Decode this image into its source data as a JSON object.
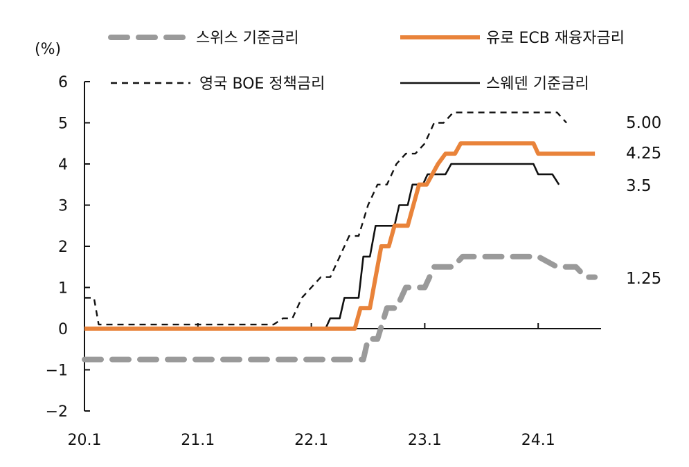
{
  "chart_data": {
    "type": "line",
    "ylabel": "(%)",
    "ylim": [
      -2,
      6
    ],
    "yticks": [
      "6",
      "5",
      "4",
      "3",
      "2",
      "1",
      "0",
      "−1",
      "−2"
    ],
    "xticks": [
      "20.1",
      "21.1",
      "22.1",
      "23.1",
      "24.1"
    ],
    "grid": false,
    "legend_position": "top",
    "series": [
      {
        "name": "스위스 기준금리",
        "color": "#9a9a9a",
        "style": "dashed-thick",
        "points": [
          [
            0,
            -0.75
          ],
          [
            29.5,
            -0.75
          ],
          [
            30,
            -0.25
          ],
          [
            31,
            -0.25
          ],
          [
            32,
            0.5
          ],
          [
            33,
            0.5
          ],
          [
            34,
            1.0
          ],
          [
            36,
            1.0
          ],
          [
            37,
            1.5
          ],
          [
            39,
            1.5
          ],
          [
            40,
            1.75
          ],
          [
            48,
            1.75
          ],
          [
            50,
            1.5
          ],
          [
            52,
            1.5
          ],
          [
            53,
            1.25
          ],
          [
            54,
            1.25
          ]
        ],
        "end_label": "1.25"
      },
      {
        "name": "유로 ECB 재융자금리",
        "color": "#e9833a",
        "style": "solid-thick",
        "points": [
          [
            0,
            0
          ],
          [
            28.6,
            0
          ],
          [
            29.2,
            0.5
          ],
          [
            30.2,
            0.5
          ],
          [
            30.8,
            1.25
          ],
          [
            31.4,
            2.0
          ],
          [
            32.2,
            2.0
          ],
          [
            32.8,
            2.5
          ],
          [
            34.2,
            2.5
          ],
          [
            34.8,
            3.0
          ],
          [
            35.4,
            3.5
          ],
          [
            36.2,
            3.5
          ],
          [
            36.8,
            3.75
          ],
          [
            37.4,
            4.0
          ],
          [
            38.2,
            4.25
          ],
          [
            39.2,
            4.25
          ],
          [
            39.8,
            4.5
          ],
          [
            47.5,
            4.5
          ],
          [
            48,
            4.25
          ],
          [
            54,
            4.25
          ]
        ],
        "end_label": "4.25"
      },
      {
        "name": "영국 BOE 정책금리",
        "color": "#111111",
        "style": "dashed-thin",
        "points": [
          [
            0,
            0.75
          ],
          [
            1,
            0.75
          ],
          [
            1.5,
            0.1
          ],
          [
            20,
            0.1
          ],
          [
            21,
            0.25
          ],
          [
            22,
            0.25
          ],
          [
            23,
            0.75
          ],
          [
            24,
            1.0
          ],
          [
            25,
            1.25
          ],
          [
            26,
            1.25
          ],
          [
            27,
            1.75
          ],
          [
            28,
            2.25
          ],
          [
            29,
            2.25
          ],
          [
            30,
            3.0
          ],
          [
            31,
            3.5
          ],
          [
            32,
            3.5
          ],
          [
            33,
            4.0
          ],
          [
            34,
            4.25
          ],
          [
            35,
            4.25
          ],
          [
            36,
            4.5
          ],
          [
            37,
            5.0
          ],
          [
            38,
            5.0
          ],
          [
            39,
            5.25
          ],
          [
            50,
            5.25
          ],
          [
            51,
            5.0
          ]
        ],
        "end_label": "5.00"
      },
      {
        "name": "스웨덴 기준금리",
        "color": "#111111",
        "style": "solid-thin",
        "points": [
          [
            0,
            0
          ],
          [
            25.5,
            0
          ],
          [
            26,
            0.25
          ],
          [
            27,
            0.25
          ],
          [
            27.5,
            0.75
          ],
          [
            29,
            0.75
          ],
          [
            29.5,
            1.75
          ],
          [
            30.2,
            1.75
          ],
          [
            30.8,
            2.5
          ],
          [
            32.8,
            2.5
          ],
          [
            33.3,
            3.0
          ],
          [
            34.2,
            3.0
          ],
          [
            34.7,
            3.5
          ],
          [
            35.8,
            3.5
          ],
          [
            36.3,
            3.75
          ],
          [
            38.2,
            3.75
          ],
          [
            38.8,
            4.0
          ],
          [
            47.5,
            4.0
          ],
          [
            48,
            3.75
          ],
          [
            49.5,
            3.75
          ],
          [
            50.2,
            3.5
          ]
        ],
        "end_label": "3.5"
      }
    ]
  }
}
